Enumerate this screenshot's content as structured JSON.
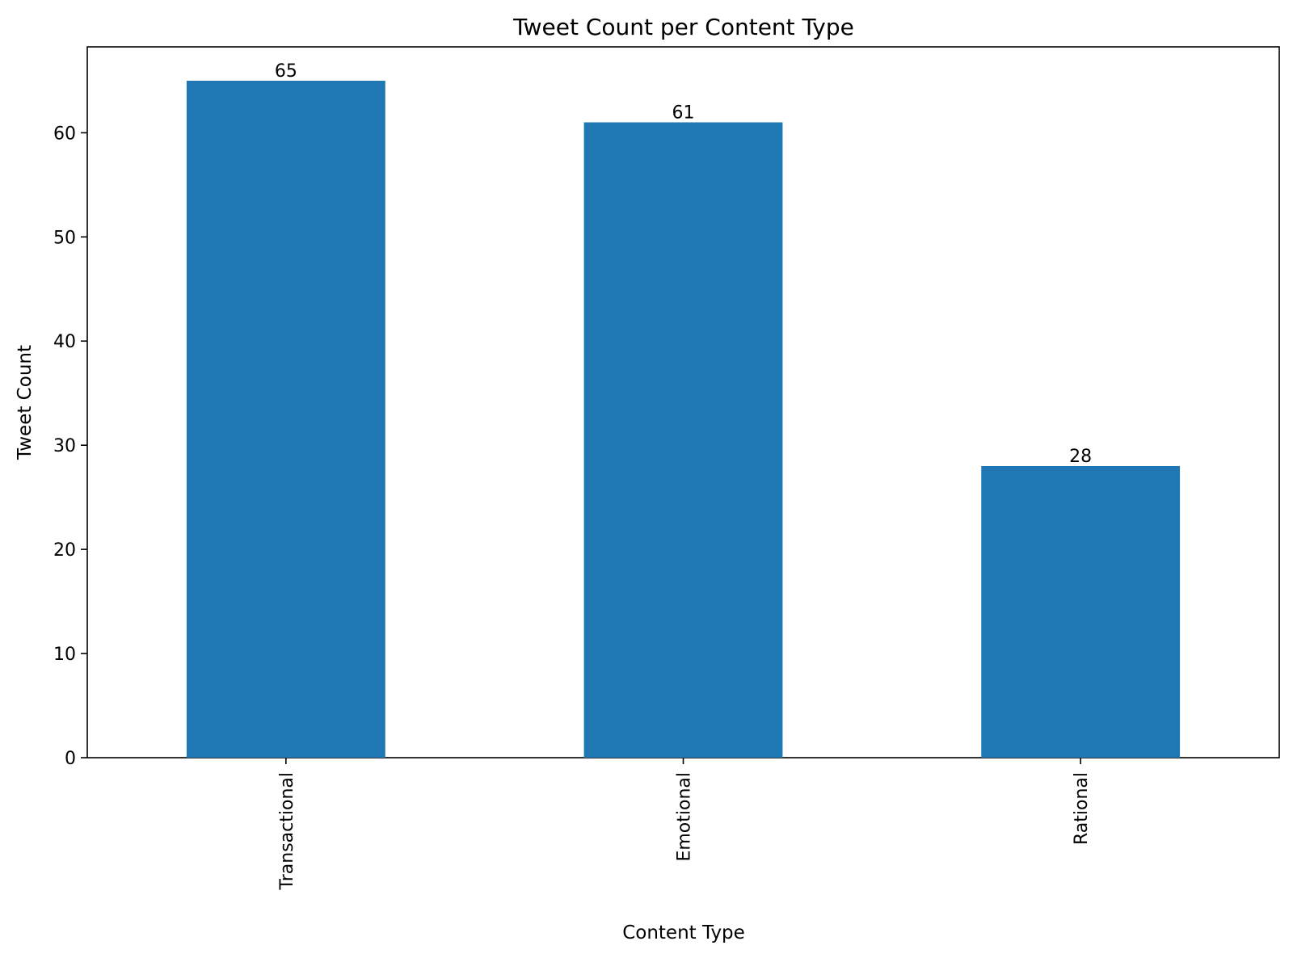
{
  "chart_data": {
    "type": "bar",
    "title": "Tweet Count per Content Type",
    "xlabel": "Content Type",
    "ylabel": "Tweet Count",
    "categories": [
      "Transactional",
      "Emotional",
      "Rational"
    ],
    "values": [
      65,
      61,
      28
    ],
    "data_labels": [
      "65",
      "61",
      "28"
    ],
    "ylim": [
      0,
      68.25
    ],
    "yticks": [
      0,
      10,
      20,
      30,
      40,
      50,
      60
    ],
    "ytick_labels": [
      "0",
      "10",
      "20",
      "30",
      "40",
      "50",
      "60"
    ],
    "bar_color": "#1f77b4",
    "grid": false,
    "legend": "none"
  }
}
